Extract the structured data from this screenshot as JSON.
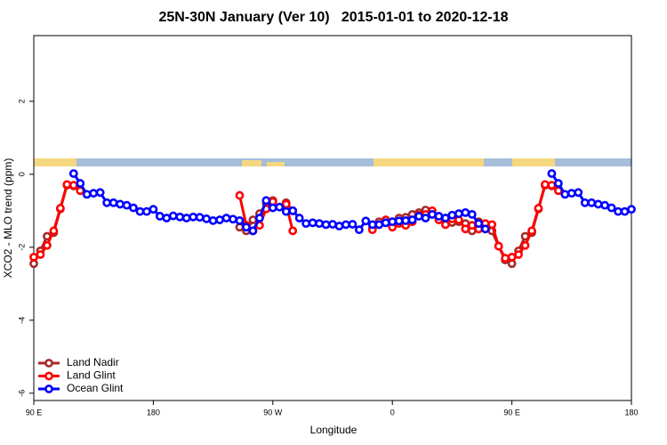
{
  "chart_data": {
    "type": "line",
    "title": "25N-30N January (Ver 10)   2015-01-01 to 2020-12-18",
    "x_label": "Longitude",
    "y_label": "XCO2 - MLO trend (ppm)",
    "xlim": [
      90,
      540
    ],
    "ylim": [
      -6.2,
      3.8
    ],
    "xticks": [
      {
        "value": 90,
        "label": "90 E"
      },
      180,
      {
        "value": 270,
        "label": "90 W"
      },
      {
        "value": 360,
        "label": "0"
      },
      {
        "value": 450,
        "label": "90 E"
      },
      {
        "value": 540,
        "label": "180"
      }
    ],
    "yticks": [
      -6,
      -4,
      -2,
      0,
      2
    ],
    "legend": "bottom-left",
    "x": [
      90,
      95,
      100,
      105,
      110,
      115,
      120,
      125,
      130,
      135,
      140,
      145,
      150,
      155,
      160,
      165,
      170,
      175,
      180,
      185,
      190,
      195,
      200,
      205,
      210,
      215,
      220,
      225,
      230,
      235,
      240,
      245,
      250,
      255,
      260,
      265,
      270,
      275,
      280,
      285,
      290,
      295,
      300,
      305,
      310,
      315,
      320,
      325,
      330,
      335,
      340,
      345,
      350,
      355,
      360,
      365,
      370,
      375,
      380,
      385,
      390,
      395,
      400,
      405,
      410,
      415,
      420,
      425,
      430,
      435,
      440,
      445,
      450,
      455,
      460,
      465,
      470,
      475,
      480,
      485,
      490,
      495,
      500,
      505,
      510,
      515,
      520,
      525,
      530,
      535,
      540
    ],
    "series": [
      {
        "name": "Land Nadir",
        "color": "#a52a2a",
        "values": [
          -2.45,
          -2.1,
          -1.7,
          -1.6,
          -0.95,
          -0.3,
          -0.32,
          null,
          null,
          null,
          null,
          null,
          null,
          null,
          null,
          null,
          null,
          null,
          null,
          null,
          null,
          null,
          null,
          null,
          null,
          null,
          null,
          null,
          null,
          null,
          null,
          -1.45,
          -1.55,
          -1.25,
          -1.08,
          -0.8,
          -0.72,
          null,
          -0.78,
          -1.0,
          null,
          null,
          null,
          null,
          null,
          null,
          null,
          null,
          null,
          null,
          null,
          -1.48,
          -1.3,
          -1.27,
          -1.3,
          -1.2,
          -1.18,
          -1.1,
          -1.05,
          -0.98,
          -1.1,
          -1.2,
          -1.2,
          -1.32,
          -1.3,
          -1.35,
          -1.55,
          -1.3,
          -1.45,
          -1.55,
          -1.97,
          -2.35,
          -2.45,
          -2.1,
          -1.7,
          -1.6,
          -0.95,
          -0.3,
          -0.32,
          null,
          null,
          null,
          null,
          null,
          null,
          null,
          null,
          null,
          null,
          null,
          null
        ]
      },
      {
        "name": "Land Glint",
        "color": "#ff0000",
        "values": [
          -2.27,
          -2.2,
          -1.95,
          -1.55,
          -0.93,
          -0.28,
          -0.3,
          -0.45,
          null,
          null,
          null,
          null,
          null,
          null,
          null,
          null,
          null,
          null,
          null,
          null,
          null,
          null,
          null,
          null,
          null,
          null,
          null,
          null,
          null,
          null,
          null,
          -0.58,
          -1.4,
          -1.55,
          -1.4,
          -0.95,
          -0.75,
          null,
          -0.82,
          -1.55,
          null,
          null,
          null,
          null,
          null,
          null,
          null,
          null,
          null,
          null,
          null,
          -1.52,
          -1.38,
          -1.25,
          -1.45,
          -1.35,
          -1.4,
          -1.3,
          -1.12,
          -1.1,
          -1.0,
          -1.25,
          -1.38,
          -1.22,
          -1.25,
          -1.5,
          -1.4,
          -1.5,
          -1.35,
          -1.38,
          -1.97,
          -2.3,
          -2.27,
          -2.2,
          -1.95,
          -1.55,
          -0.93,
          -0.28,
          -0.3,
          -0.45,
          null,
          null,
          null,
          null,
          null,
          null,
          null,
          null,
          null,
          null,
          null
        ]
      },
      {
        "name": "Ocean Glint",
        "color": "#0000ff",
        "values": [
          null,
          null,
          null,
          null,
          null,
          null,
          0.02,
          -0.25,
          -0.55,
          -0.52,
          -0.5,
          -0.78,
          -0.78,
          -0.82,
          -0.85,
          -0.92,
          -1.02,
          -1.02,
          -0.96,
          -1.15,
          -1.2,
          -1.14,
          -1.17,
          -1.2,
          -1.17,
          -1.18,
          -1.22,
          -1.27,
          -1.25,
          -1.2,
          -1.23,
          -1.27,
          -1.45,
          -1.55,
          -1.2,
          -0.72,
          -0.92,
          -0.9,
          -1.02,
          -1.0,
          -1.2,
          -1.35,
          -1.33,
          -1.35,
          -1.38,
          -1.37,
          -1.42,
          -1.38,
          -1.37,
          -1.52,
          -1.28,
          -1.38,
          -1.38,
          -1.33,
          -1.3,
          -1.28,
          -1.27,
          -1.25,
          -1.15,
          -1.2,
          -1.1,
          -1.15,
          -1.2,
          -1.12,
          -1.08,
          -1.05,
          -1.1,
          -1.35,
          -1.5,
          null,
          null,
          null,
          null,
          null,
          null,
          null,
          null,
          null,
          0.02,
          -0.25,
          -0.55,
          -0.52,
          -0.5,
          -0.78,
          -0.78,
          -0.82,
          -0.85,
          -0.92,
          -1.02,
          -1.02,
          -0.96
        ]
      }
    ]
  }
}
